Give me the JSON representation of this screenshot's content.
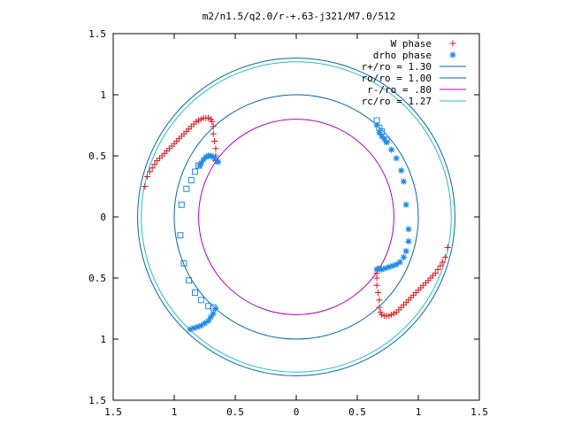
{
  "chart_data": {
    "type": "scatter",
    "title": "m2/n1.5/q2.0/r-+.63-j321/M7.0/512",
    "x_ticks": [
      "1.5",
      "1",
      "0.5",
      "0",
      "0.5",
      "1",
      "1.5"
    ],
    "y_ticks": [
      "1.5",
      "1",
      "0.5",
      "0",
      "0.5",
      "1",
      "1.5"
    ],
    "xlim": [
      -1.5,
      1.5
    ],
    "ylim": [
      -1.5,
      1.5
    ],
    "grid": false,
    "legend_position": "top-right",
    "circles": [
      {
        "name": "r+/ro = 1.30",
        "radius": 1.3,
        "color": "#0066b3"
      },
      {
        "name": "ro/ro = 1.00",
        "radius": 1.0,
        "color": "#0066b3"
      },
      {
        "name": "r-/ro =  .80",
        "radius": 0.8,
        "color": "#b000c0"
      },
      {
        "name": "rc/ro = 1.27",
        "radius": 1.27,
        "color": "#20c0c0"
      }
    ],
    "series": [
      {
        "name": "W phase",
        "marker": "plus",
        "color": "#e8141b",
        "points": [
          [
            -1.24,
            0.25
          ],
          [
            -1.22,
            0.33
          ],
          [
            -1.2,
            0.37
          ],
          [
            -1.18,
            0.4
          ],
          [
            -1.16,
            0.43
          ],
          [
            -1.14,
            0.46
          ],
          [
            -1.12,
            0.48
          ],
          [
            -1.1,
            0.5
          ],
          [
            -1.08,
            0.52
          ],
          [
            -1.06,
            0.54
          ],
          [
            -1.04,
            0.56
          ],
          [
            -1.02,
            0.58
          ],
          [
            -1.0,
            0.6
          ],
          [
            -0.98,
            0.62
          ],
          [
            -0.96,
            0.64
          ],
          [
            -0.94,
            0.66
          ],
          [
            -0.92,
            0.68
          ],
          [
            -0.9,
            0.7
          ],
          [
            -0.88,
            0.72
          ],
          [
            -0.86,
            0.74
          ],
          [
            -0.84,
            0.76
          ],
          [
            -0.82,
            0.78
          ],
          [
            -0.8,
            0.79
          ],
          [
            -0.78,
            0.8
          ],
          [
            -0.76,
            0.81
          ],
          [
            -0.74,
            0.81
          ],
          [
            -0.72,
            0.81
          ],
          [
            -0.7,
            0.8
          ],
          [
            -0.69,
            0.78
          ],
          [
            -0.68,
            0.74
          ],
          [
            -0.68,
            0.68
          ],
          [
            -0.67,
            0.62
          ],
          [
            -0.66,
            0.56
          ],
          [
            -0.66,
            0.5
          ],
          [
            -0.66,
            0.46
          ],
          [
            1.24,
            -0.25
          ],
          [
            1.22,
            -0.33
          ],
          [
            1.2,
            -0.37
          ],
          [
            1.18,
            -0.4
          ],
          [
            1.16,
            -0.43
          ],
          [
            1.14,
            -0.46
          ],
          [
            1.12,
            -0.48
          ],
          [
            1.1,
            -0.5
          ],
          [
            1.08,
            -0.52
          ],
          [
            1.06,
            -0.54
          ],
          [
            1.04,
            -0.56
          ],
          [
            1.02,
            -0.58
          ],
          [
            1.0,
            -0.6
          ],
          [
            0.98,
            -0.62
          ],
          [
            0.96,
            -0.64
          ],
          [
            0.94,
            -0.66
          ],
          [
            0.92,
            -0.68
          ],
          [
            0.9,
            -0.7
          ],
          [
            0.88,
            -0.72
          ],
          [
            0.86,
            -0.74
          ],
          [
            0.84,
            -0.76
          ],
          [
            0.82,
            -0.78
          ],
          [
            0.8,
            -0.79
          ],
          [
            0.78,
            -0.8
          ],
          [
            0.76,
            -0.81
          ],
          [
            0.74,
            -0.81
          ],
          [
            0.72,
            -0.81
          ],
          [
            0.7,
            -0.8
          ],
          [
            0.69,
            -0.78
          ],
          [
            0.68,
            -0.74
          ],
          [
            0.68,
            -0.68
          ],
          [
            0.67,
            -0.62
          ],
          [
            0.66,
            -0.56
          ],
          [
            0.66,
            -0.5
          ],
          [
            0.66,
            -0.46
          ]
        ]
      },
      {
        "name": "drho phase",
        "marker": "star",
        "color": "#1a8ae8",
        "points": [
          [
            -0.64,
            0.45
          ],
          [
            -0.66,
            0.47
          ],
          [
            -0.68,
            0.49
          ],
          [
            -0.7,
            0.5
          ],
          [
            -0.72,
            0.5
          ],
          [
            -0.74,
            0.49
          ],
          [
            -0.76,
            0.47
          ],
          [
            -0.78,
            0.44
          ],
          [
            -0.79,
            0.42
          ],
          [
            -0.66,
            -0.75
          ],
          [
            -0.68,
            -0.79
          ],
          [
            -0.7,
            -0.82
          ],
          [
            -0.72,
            -0.85
          ],
          [
            -0.75,
            -0.87
          ],
          [
            -0.78,
            -0.89
          ],
          [
            -0.81,
            -0.9
          ],
          [
            -0.84,
            -0.91
          ],
          [
            -0.87,
            -0.92
          ],
          [
            0.66,
            0.75
          ],
          [
            0.68,
            0.69
          ],
          [
            0.7,
            0.66
          ],
          [
            0.72,
            0.64
          ],
          [
            0.74,
            0.61
          ],
          [
            0.78,
            0.55
          ],
          [
            0.82,
            0.48
          ],
          [
            0.86,
            0.38
          ],
          [
            0.88,
            0.29
          ],
          [
            0.9,
            0.1
          ],
          [
            0.92,
            -0.1
          ],
          [
            0.92,
            -0.2
          ],
          [
            0.9,
            -0.28
          ],
          [
            0.88,
            -0.33
          ],
          [
            0.85,
            -0.37
          ],
          [
            0.82,
            -0.39
          ],
          [
            0.79,
            -0.4
          ],
          [
            0.76,
            -0.41
          ],
          [
            0.73,
            -0.42
          ],
          [
            0.7,
            -0.43
          ],
          [
            0.68,
            -0.42
          ],
          [
            0.66,
            -0.43
          ]
        ]
      },
      {
        "name": "",
        "marker": "square",
        "color": "#1a8ae8",
        "points": [
          [
            -0.8,
            0.42
          ],
          [
            -0.83,
            0.37
          ],
          [
            -0.86,
            0.3
          ],
          [
            -0.9,
            0.23
          ],
          [
            -0.94,
            0.1
          ],
          [
            -0.95,
            -0.15
          ],
          [
            -0.92,
            -0.38
          ],
          [
            -0.88,
            -0.52
          ],
          [
            -0.83,
            -0.62
          ],
          [
            -0.78,
            -0.68
          ],
          [
            -0.72,
            -0.73
          ],
          [
            -0.68,
            -0.74
          ],
          [
            0.66,
            0.79
          ],
          [
            0.68,
            0.73
          ],
          [
            0.7,
            0.7
          ],
          [
            0.74,
            0.63
          ]
        ]
      }
    ]
  }
}
